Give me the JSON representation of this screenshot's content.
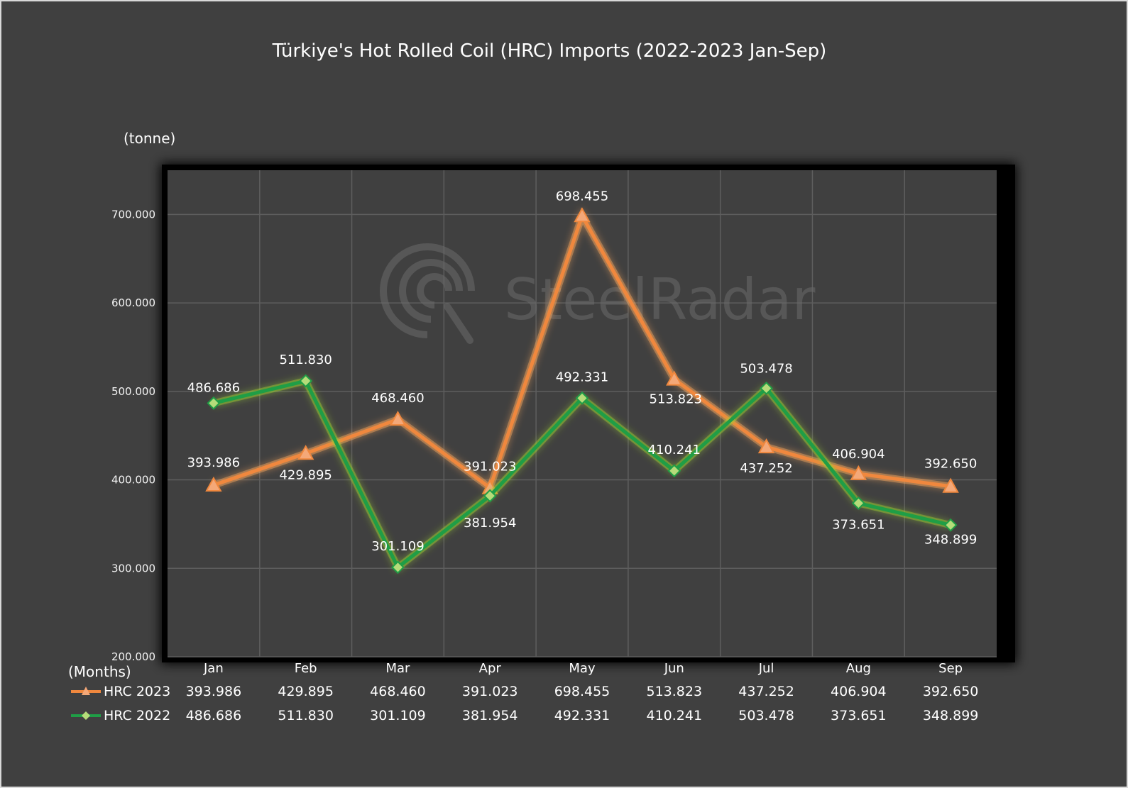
{
  "chart_data": {
    "type": "line",
    "title": "Türkiye's Hot Rolled Coil (HRC) Imports (2022-2023 Jan-Sep)",
    "ylabel": "(tonne)",
    "xlabel": "(Months)",
    "watermark": "SteelRadar",
    "categories": [
      "Jan",
      "Feb",
      "Mar",
      "Apr",
      "May",
      "Jun",
      "Jul",
      "Aug",
      "Sep"
    ],
    "ylim": [
      200000,
      750000
    ],
    "yticks": [
      200000,
      300000,
      400000,
      500000,
      600000,
      700000
    ],
    "ytick_labels": [
      "200.000",
      "300.000",
      "400.000",
      "500.000",
      "600.000",
      "700.000"
    ],
    "grid": true,
    "legend_position": "data table below chart",
    "series": [
      {
        "name": "HRC 2023",
        "color": "#f0883e",
        "marker": "triangle",
        "values": [
          393986,
          429895,
          468460,
          391023,
          698455,
          513823,
          437252,
          406904,
          392650
        ],
        "labels": [
          "393.986",
          "429.895",
          "468.460",
          "391.023",
          "698.455",
          "513.823",
          "437.252",
          "406.904",
          "392.650"
        ]
      },
      {
        "name": "HRC 2022",
        "color": "#1f9e46",
        "marker": "diamond",
        "values": [
          486686,
          511830,
          301109,
          381954,
          492331,
          410241,
          503478,
          373651,
          348899
        ],
        "labels": [
          "486.686",
          "511.830",
          "301.109",
          "381.954",
          "492.331",
          "410.241",
          "503.478",
          "373.651",
          "348.899"
        ]
      }
    ]
  }
}
